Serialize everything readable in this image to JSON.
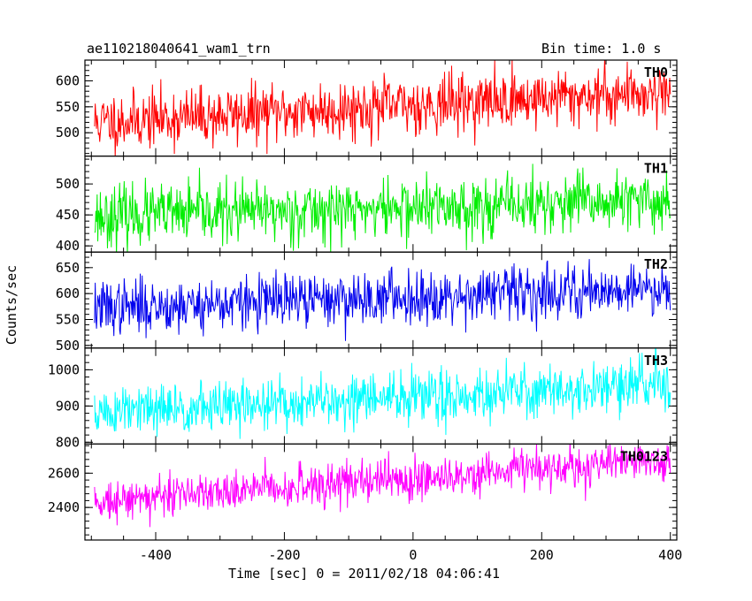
{
  "header": {
    "observation_id": "ae110218040641_wam1_trn",
    "bin_time": "Bin time: 1.0 s"
  },
  "axes": {
    "xlabel": "Time [sec] 0 = 2011/02/18 04:06:41",
    "ylabel": "Counts/sec"
  },
  "chart_data": {
    "type": "line",
    "shared_x": true,
    "x_range": [
      -510,
      410
    ],
    "x_ticks": [
      -400,
      -200,
      0,
      200,
      400
    ],
    "panels": [
      {
        "name": "TH0",
        "color": "#ff0000",
        "ylim": [
          455,
          640
        ],
        "y_ticks": [
          500,
          550,
          600
        ],
        "trend": {
          "start": 520,
          "end": 580
        },
        "noise_sd": 28,
        "seed": 11
      },
      {
        "name": "TH1",
        "color": "#00ee00",
        "ylim": [
          390,
          545
        ],
        "y_ticks": [
          400,
          450,
          500
        ],
        "trend": {
          "start": 448,
          "end": 472
        },
        "noise_sd": 24,
        "seed": 23
      },
      {
        "name": "TH2",
        "color": "#0000ee",
        "ylim": [
          495,
          680
        ],
        "y_ticks": [
          500,
          550,
          600,
          650
        ],
        "trend": {
          "start": 572,
          "end": 612
        },
        "noise_sd": 26,
        "seed": 37
      },
      {
        "name": "TH3",
        "color": "#00ffff",
        "ylim": [
          795,
          1060
        ],
        "y_ticks": [
          800,
          900,
          1000
        ],
        "trend": {
          "start": 880,
          "end": 960
        },
        "noise_sd": 36,
        "seed": 51
      },
      {
        "name": "TH0123",
        "color": "#ff00ff",
        "ylim": [
          2210,
          2770
        ],
        "y_ticks": [
          2400,
          2600
        ],
        "trend": {
          "start": 2440,
          "end": 2680
        },
        "noise_sd": 60,
        "seed": 73
      }
    ]
  }
}
